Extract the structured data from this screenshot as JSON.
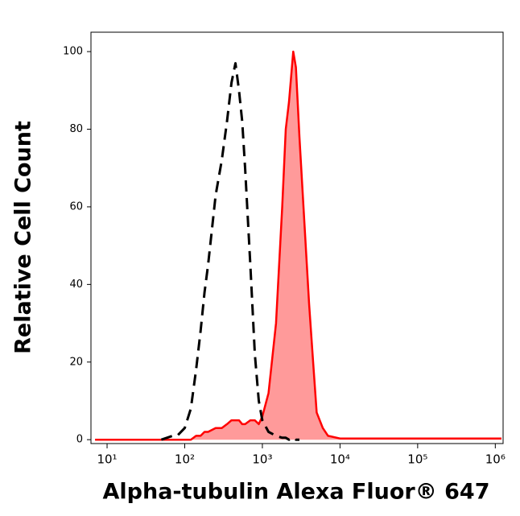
{
  "chart_data": {
    "type": "histogram-line",
    "xlabel": "Alpha-tubulin Alexa Fluor® 647",
    "ylabel": "Relative Cell Count",
    "x_scale": "log",
    "x": [
      7,
      10,
      30,
      50,
      70,
      80,
      100,
      120,
      140,
      160,
      180,
      200,
      250,
      300,
      350,
      400,
      450,
      500,
      550,
      600,
      700,
      800,
      900,
      1000,
      1200,
      1500,
      1800,
      2000,
      2200,
      2500,
      2700,
      3000,
      3500,
      4000,
      4500,
      5000,
      6000,
      7000,
      10000,
      100000,
      1000000,
      1200000
    ],
    "series": [
      {
        "color": "#ff0000",
        "fill": "#ff9a9a",
        "dashed": false,
        "values": [
          0,
          0,
          0,
          0,
          0,
          0,
          0,
          0,
          1,
          1,
          2,
          2,
          3,
          3,
          4,
          5,
          5,
          5,
          4,
          4,
          5,
          5,
          4,
          6,
          12,
          30,
          60,
          80,
          87,
          100,
          96,
          78,
          55,
          35,
          20,
          7,
          3,
          1,
          0.3,
          0.3,
          0.3,
          0.3
        ]
      },
      {
        "color": "#000000",
        "fill": null,
        "dashed": true,
        "values": [
          null,
          null,
          null,
          0,
          1,
          1,
          3,
          8,
          18,
          28,
          38,
          45,
          63,
          72,
          82,
          92,
          97,
          90,
          82,
          70,
          45,
          22,
          10,
          5,
          2,
          1,
          0.5,
          0.5,
          0,
          0.5,
          0,
          0,
          null,
          null,
          null,
          null,
          null,
          null,
          null,
          null,
          null,
          null
        ]
      }
    ],
    "xlim": [
      6.2,
      1260000
    ],
    "xticks": [
      {
        "value": 10,
        "label": "10¹"
      },
      {
        "value": 100,
        "label": "10²"
      },
      {
        "value": 1000,
        "label": "10³"
      },
      {
        "value": 10000,
        "label": "10⁴"
      },
      {
        "value": 100000,
        "label": "10⁵"
      },
      {
        "value": 1000000,
        "label": "10⁶"
      }
    ],
    "ylim": [
      -1,
      105
    ],
    "yticks": [
      0,
      20,
      40,
      60,
      80,
      100
    ]
  }
}
